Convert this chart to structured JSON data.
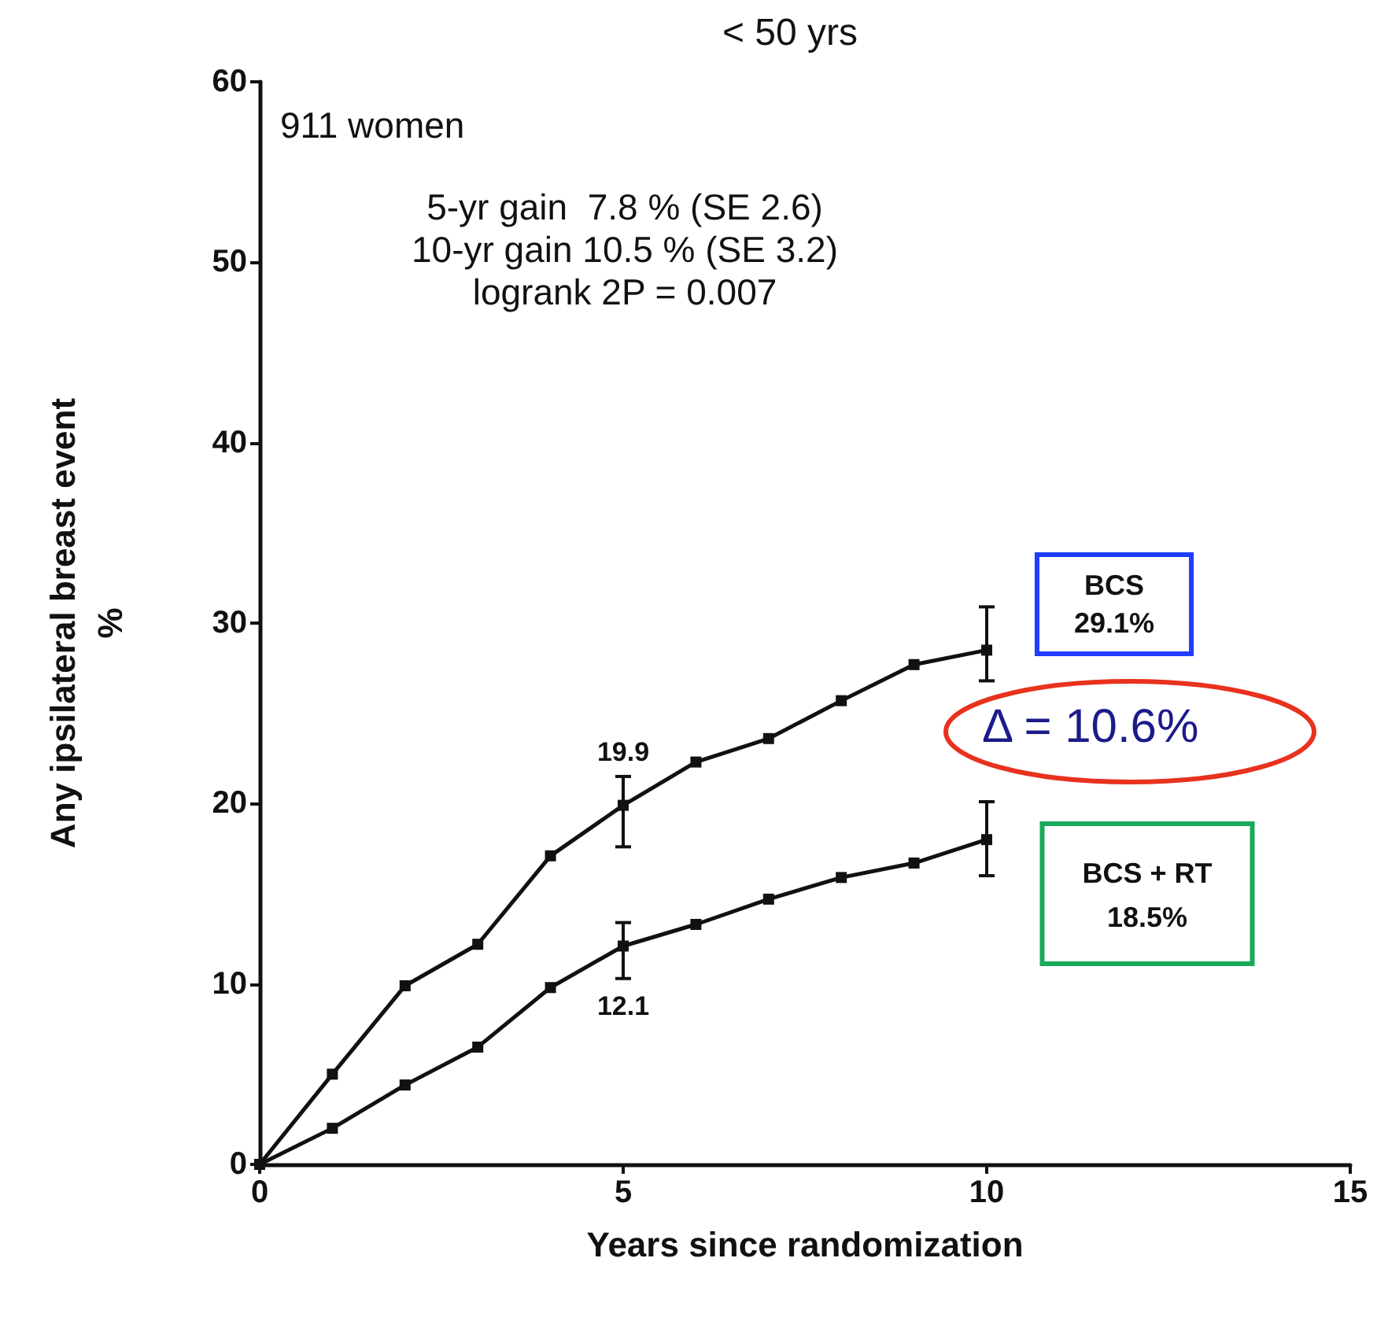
{
  "chart_data": {
    "type": "line",
    "title": "< 50 yrs",
    "xlabel": "Years since randomization",
    "ylabel": "Any ipsilateral breast event\n%",
    "x": [
      0,
      1,
      2,
      3,
      4,
      5,
      6,
      7,
      8,
      9,
      10
    ],
    "series": [
      {
        "color": "#111111",
        "values": [
          0,
          5.0,
          9.9,
          12.2,
          17.1,
          19.9,
          22.3,
          23.6,
          25.7,
          27.7,
          28.5
        ],
        "errors": [
          null,
          null,
          null,
          null,
          null,
          [
            17.6,
            21.5
          ],
          null,
          null,
          null,
          null,
          [
            26.8,
            30.9
          ]
        ],
        "value_labels": [
          null,
          null,
          null,
          null,
          null,
          "19.9",
          null,
          null,
          null,
          null,
          null
        ]
      },
      {
        "color": "#111111",
        "values": [
          0,
          2.0,
          4.4,
          6.5,
          9.8,
          12.1,
          13.3,
          14.7,
          15.9,
          16.7,
          18.0
        ],
        "errors": [
          null,
          null,
          null,
          null,
          null,
          [
            10.3,
            13.4
          ],
          null,
          null,
          null,
          null,
          [
            16.0,
            20.1
          ]
        ],
        "value_labels": [
          null,
          null,
          null,
          null,
          null,
          "12.1",
          null,
          null,
          null,
          null,
          null
        ]
      }
    ],
    "xlim": [
      0,
      15
    ],
    "xticks": [
      0,
      5,
      10,
      15
    ],
    "ylim": [
      0,
      60
    ],
    "yticks": [
      0,
      10,
      20,
      30,
      40,
      50,
      60
    ],
    "grid": false,
    "marker": "square",
    "line_style": "solid",
    "annotations": [
      "911 women",
      "5-yr gain  7.8 % (SE 2.6)\n10-yr gain 10.5 % (SE 3.2)\nlogrank 2P = 0.007",
      "BCS\n29.1%",
      "Δ = 10.6%",
      "BCS + RT\n18.5%"
    ]
  }
}
